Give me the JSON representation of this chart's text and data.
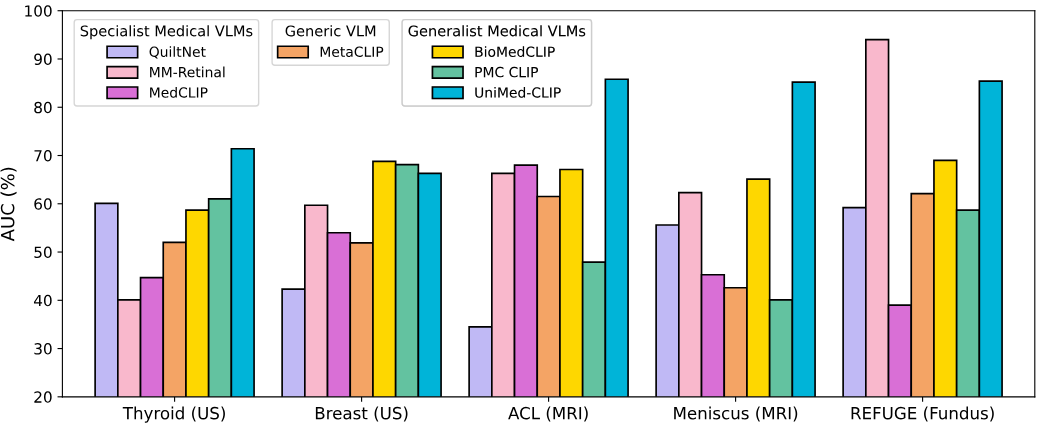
{
  "chart_data": {
    "type": "bar",
    "ylabel": "AUC (%)",
    "categories": [
      "Thyroid (US)",
      "Breast (US)",
      "ACL (MRI)",
      "Meniscus (MRI)",
      "REFUGE (Fundus)"
    ],
    "ylim": [
      20,
      100
    ],
    "yticks": [
      20,
      30,
      40,
      50,
      60,
      70,
      80,
      90,
      100
    ],
    "grid": false,
    "legend": "top left",
    "legend_title": [
      "Specialist Medical VLMs",
      null,
      null,
      "Generic VLM",
      "Generalist Medical VLMs",
      null,
      null
    ],
    "series": [
      {
        "name": "QuiltNet",
        "color": "#c0b9f5",
        "values": [
          60.1,
          42.3,
          34.5,
          55.6,
          59.2
        ]
      },
      {
        "name": "MM-Retinal",
        "color": "#f9b8cc",
        "values": [
          40.1,
          59.7,
          66.3,
          62.3,
          94.0
        ]
      },
      {
        "name": "MedCLIP",
        "color": "#d96fd6",
        "values": [
          44.7,
          54.0,
          68.0,
          45.3,
          39.0
        ]
      },
      {
        "name": "MetaCLIP",
        "color": "#f4a465",
        "values": [
          52.0,
          51.9,
          61.5,
          42.6,
          62.1
        ]
      },
      {
        "name": "BioMedCLIP",
        "color": "#fed700",
        "values": [
          58.7,
          68.8,
          67.1,
          65.1,
          69.0
        ]
      },
      {
        "name": "PMC CLIP",
        "color": "#63c2a0",
        "values": [
          61.0,
          68.1,
          47.9,
          40.1,
          58.7
        ]
      },
      {
        "name": "UniMed-CLIP",
        "color": "#00b4d8",
        "values": [
          71.4,
          66.3,
          85.8,
          85.2,
          85.4
        ]
      }
    ]
  }
}
